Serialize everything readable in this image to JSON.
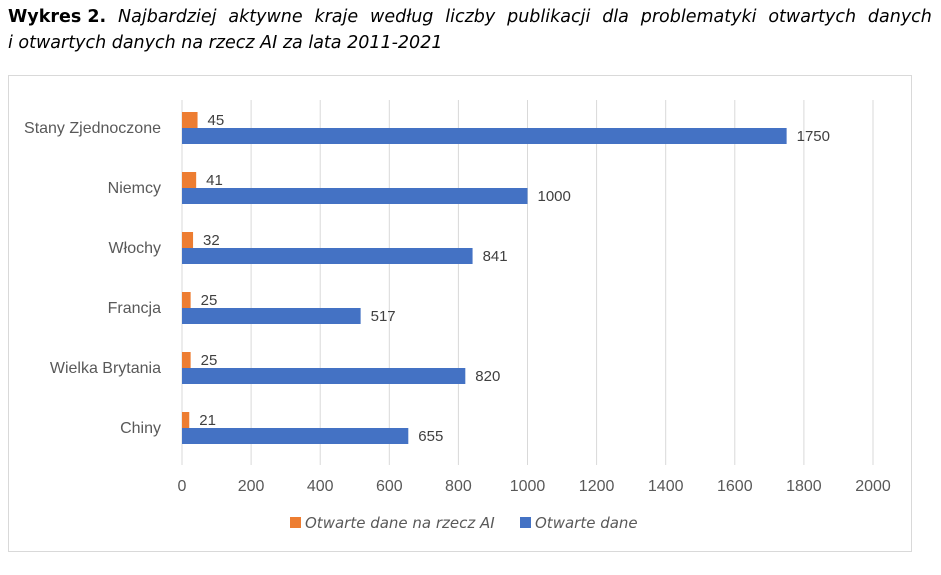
{
  "caption": {
    "prefix": "Wykres 2.",
    "line1_words": [
      "Najbardziej",
      "aktywne",
      "kraje",
      "według",
      "liczby",
      "publikacji",
      "dla",
      "problematyki",
      "otwartych",
      "danych"
    ],
    "line2": "i otwartych danych na rzecz AI za lata 2011-2021"
  },
  "chart_data": {
    "type": "bar",
    "orientation": "horizontal",
    "categories": [
      "Stany Zjednoczone",
      "Niemcy",
      "Włochy",
      "Francja",
      "Wielka Brytania",
      "Chiny"
    ],
    "series": [
      {
        "name": "Otwarte dane na rzecz AI",
        "values": [
          45,
          41,
          32,
          25,
          25,
          21
        ],
        "color": "#ed7d31"
      },
      {
        "name": "Otwarte dane",
        "values": [
          1750,
          1000,
          841,
          517,
          820,
          655
        ],
        "color": "#4472c4"
      }
    ],
    "x_ticks": [
      "0",
      "200",
      "400",
      "600",
      "800",
      "1000",
      "1200",
      "1400",
      "1600",
      "1800",
      "2000"
    ],
    "xlim": [
      0,
      2000
    ],
    "grid": true,
    "legend_position": "bottom",
    "gridline_color": "#d9d9d9",
    "label_color": "#595959"
  }
}
